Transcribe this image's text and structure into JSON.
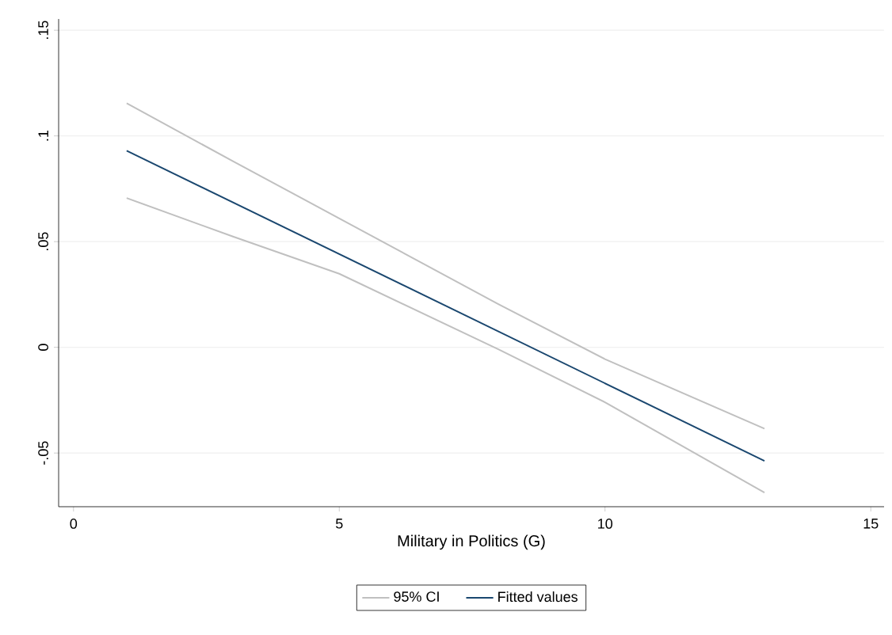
{
  "chart_data": {
    "type": "line",
    "xlabel": "Military in Politics (G)",
    "xlim": [
      -0.28,
      15.25
    ],
    "ylim": [
      -0.0754,
      0.1553
    ],
    "xticks": [
      0,
      5,
      10,
      15
    ],
    "yticks": [
      {
        "value": -0.05,
        "label": "-.05"
      },
      {
        "value": 0,
        "label": "0"
      },
      {
        "value": 0.05,
        "label": ".05"
      },
      {
        "value": 0.1,
        "label": ".1"
      },
      {
        "value": 0.15,
        "label": ".15"
      }
    ],
    "grid": "y",
    "legend": "bottom",
    "series": [
      {
        "name": "95% CI",
        "color": "#c0c0c0",
        "x": [
          1,
          3,
          5,
          8,
          10,
          13
        ],
        "values": [
          0.1155,
          0.088,
          0.061,
          0.0203,
          -0.0056,
          -0.0385
        ]
      },
      {
        "color": "#c0c0c0",
        "x": [
          1,
          3,
          5,
          8,
          10,
          13
        ],
        "values": [
          0.0706,
          0.0524,
          0.0348,
          -0.001,
          -0.026,
          -0.0687
        ]
      },
      {
        "name": "Fitted values",
        "color": "#1a476f",
        "x": [
          1,
          13
        ],
        "values": [
          0.093,
          -0.0537
        ]
      }
    ]
  }
}
